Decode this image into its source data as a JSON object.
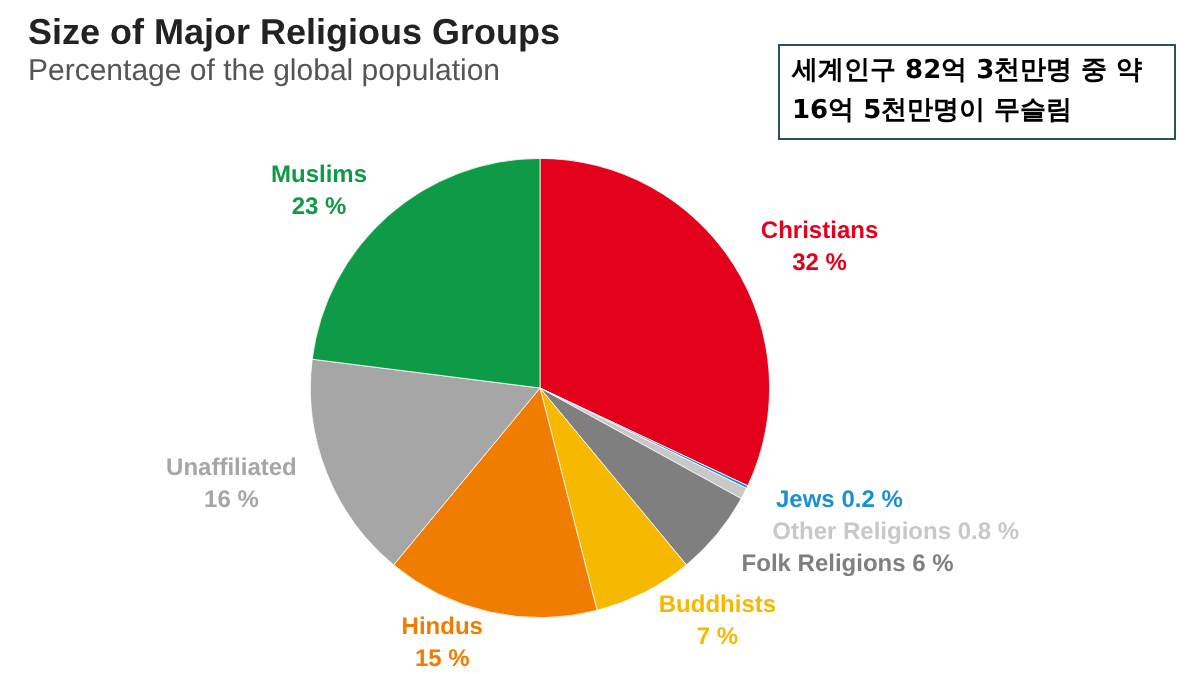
{
  "chart_data": {
    "type": "pie",
    "title": "Size of Major Religious Groups",
    "subtitle": "Percentage of the global population",
    "categories": [
      "Christians",
      "Jews",
      "Other Religions",
      "Folk Religions",
      "Buddhists",
      "Hindus",
      "Unaffiliated",
      "Muslims"
    ],
    "values": [
      32,
      0.2,
      0.8,
      6,
      7,
      15,
      16,
      23
    ],
    "value_labels": [
      "32 %",
      "0.2 %",
      "0.8 %",
      "6 %",
      "7 %",
      "15 %",
      "16 %",
      "23 %"
    ],
    "colors": [
      "#e3001b",
      "#1a8fd6",
      "#c8c8c8",
      "#7f7f7f",
      "#f7b800",
      "#f07d00",
      "#a6a6a6",
      "#0f9a48"
    ],
    "legend": false,
    "annotations": [
      "세계인구 82억 3천만명 중 약 16억 5천만명이 무슬림"
    ]
  }
}
